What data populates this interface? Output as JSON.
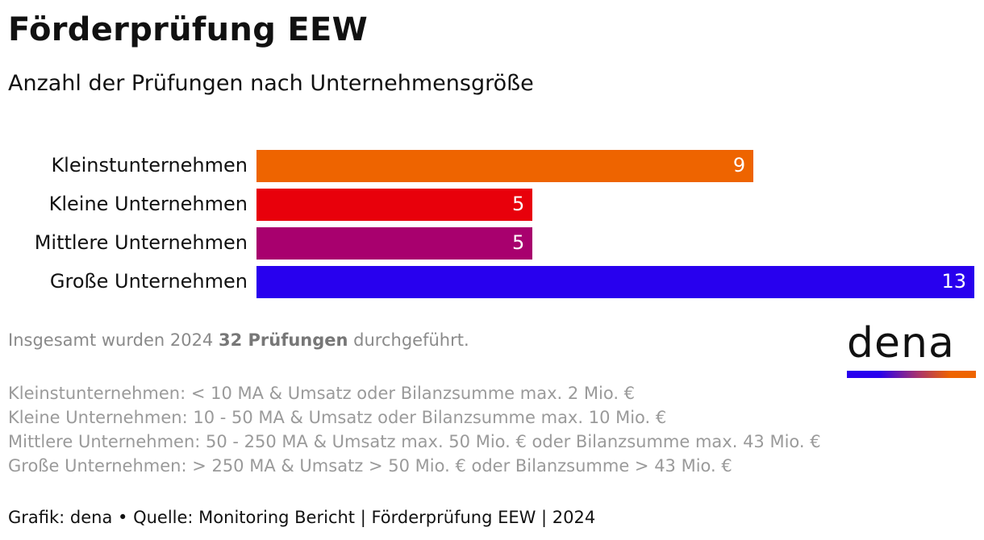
{
  "header": {
    "title": "Förderprüfung EEW",
    "subtitle": "Anzahl der Prüfungen nach Unternehmensgröße"
  },
  "chart_data": {
    "type": "bar",
    "orientation": "horizontal",
    "categories": [
      "Kleinstunternehmen",
      "Kleine Unternehmen",
      "Mittlere Unternehmen",
      "Große Unternehmen"
    ],
    "values": [
      9,
      5,
      5,
      13
    ],
    "value_labels": [
      "9",
      "5",
      "5",
      "13"
    ],
    "colors": [
      "#ee6400",
      "#e8000b",
      "#a8006e",
      "#2800ee"
    ],
    "xlim": [
      0,
      13
    ],
    "grid": false,
    "legend": "none"
  },
  "note": {
    "pre": "Insgesamt wurden 2024 ",
    "bold": "32 Prüfungen",
    "post": " durchgeführt."
  },
  "definitions": [
    "Kleinstunternehmen: < 10 MA & Umsatz oder Bilanzsumme max. 2 Mio. €",
    "Kleine Unternehmen: 10 - 50 MA & Umsatz oder Bilanzsumme max. 10 Mio. €",
    "Mittlere Unternehmen: 50 - 250 MA & Umsatz max. 50 Mio. € oder Bilanzsumme max. 43 Mio. €",
    "Große Unternehmen:  > 250 MA & Umsatz > 50 Mio. € oder Bilanzsumme > 43 Mio. €"
  ],
  "source": "Grafik: dena • Quelle: Monitoring Bericht | Förderprüfung EEW | 2024",
  "logo": {
    "text": "dena"
  }
}
